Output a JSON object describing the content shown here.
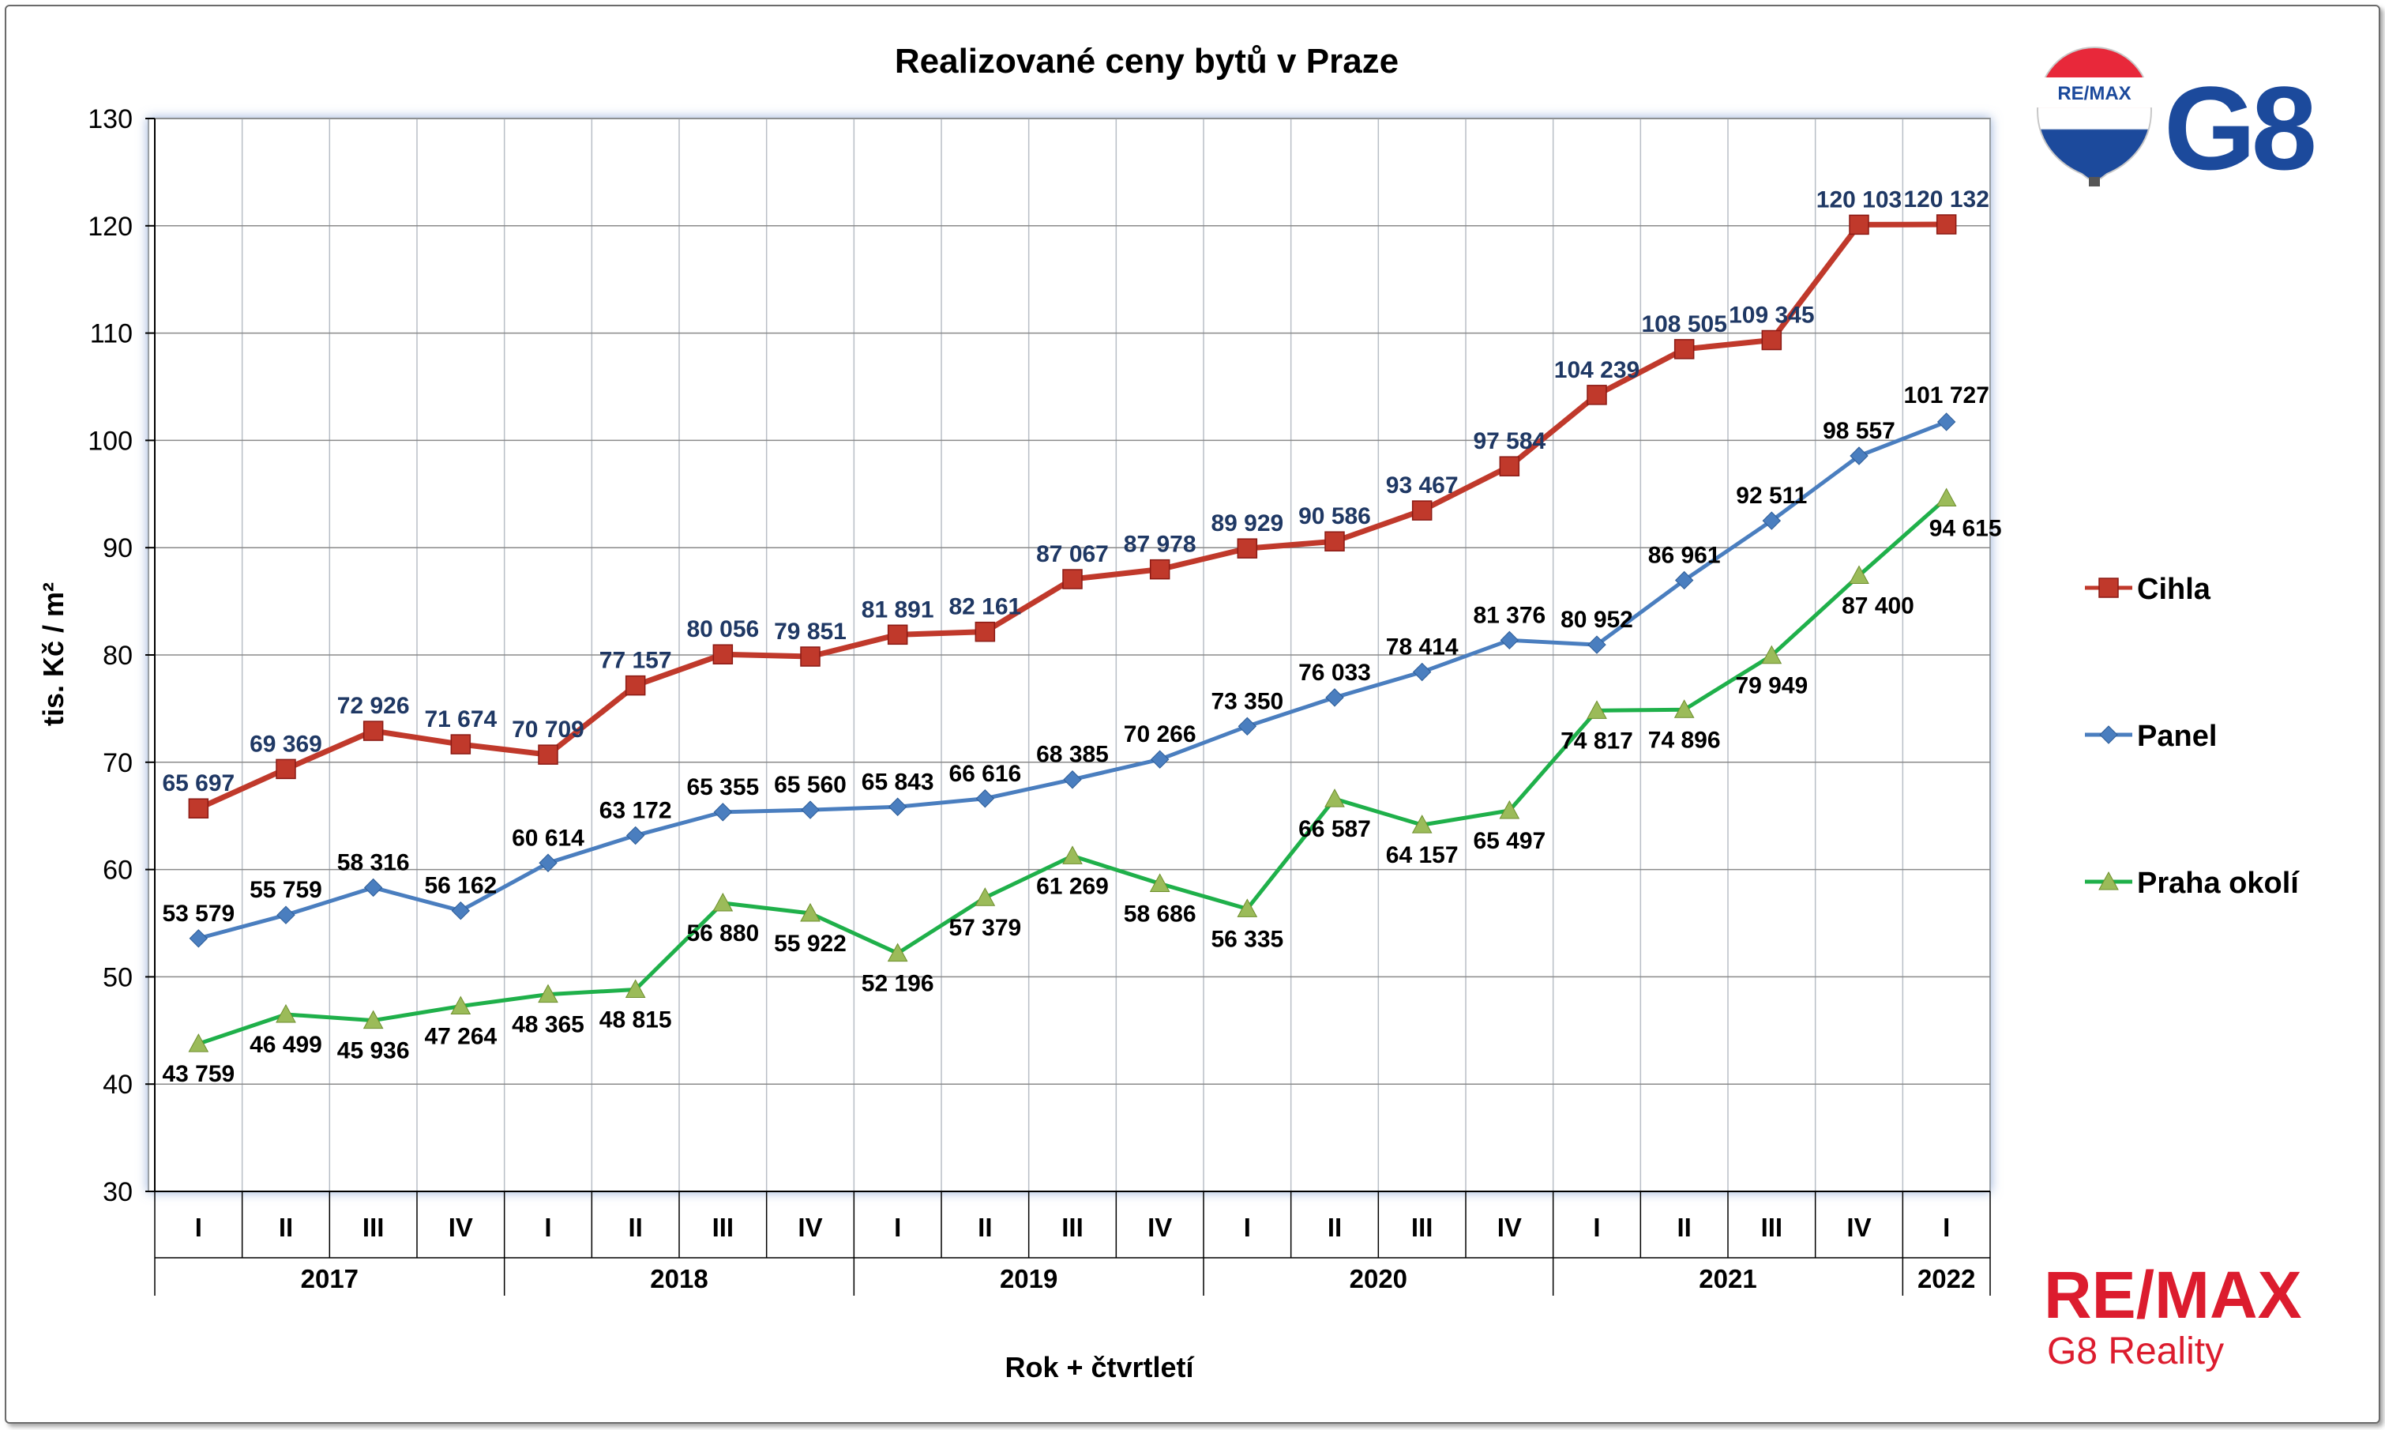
{
  "chart_data": {
    "type": "line",
    "title": "Realizované ceny bytů v Praze",
    "ylabel": "tis. Kč / m²",
    "xlabel": "Rok + čtvrtletí",
    "ylim": [
      30,
      130
    ],
    "yticks": [
      30,
      40,
      50,
      60,
      70,
      80,
      90,
      100,
      110,
      120,
      130
    ],
    "categories": [
      "I",
      "II",
      "III",
      "IV",
      "I",
      "II",
      "III",
      "IV",
      "I",
      "II",
      "III",
      "IV",
      "I",
      "II",
      "III",
      "IV",
      "I",
      "II",
      "III",
      "IV",
      "I"
    ],
    "years": [
      {
        "label": "2017",
        "quarters": 4
      },
      {
        "label": "2018",
        "quarters": 4
      },
      {
        "label": "2019",
        "quarters": 4
      },
      {
        "label": "2020",
        "quarters": 4
      },
      {
        "label": "2021",
        "quarters": 4
      },
      {
        "label": "2022",
        "quarters": 1
      }
    ],
    "grid": true,
    "legend_position": "right",
    "series": [
      {
        "name": "Cihla",
        "color": "#c0392b",
        "label_color": "#1f3864",
        "marker": "square",
        "values": [
          65.697,
          69.369,
          72.926,
          71.674,
          70.709,
          77.157,
          80.056,
          79.851,
          81.891,
          82.161,
          87.067,
          87.978,
          89.929,
          90.586,
          93.467,
          97.584,
          104.239,
          108.505,
          109.345,
          120.103,
          120.132
        ],
        "labels": [
          "65 697",
          "69 369",
          "72 926",
          "71 674",
          "70 709",
          "77 157",
          "80 056",
          "79 851",
          "81 891",
          "82 161",
          "87 067",
          "87 978",
          "89 929",
          "90 586",
          "93 467",
          "97 584",
          "104 239",
          "108 505",
          "109 345",
          "120 103",
          "120 132"
        ]
      },
      {
        "name": "Panel",
        "color": "#4a7ebf",
        "label_color": "#000000",
        "marker": "diamond",
        "values": [
          53.579,
          55.759,
          58.316,
          56.162,
          60.614,
          63.172,
          65.355,
          65.56,
          65.843,
          66.616,
          68.385,
          70.266,
          73.35,
          76.033,
          78.414,
          81.376,
          80.952,
          86.961,
          92.511,
          98.557,
          101.727
        ],
        "labels": [
          "53 579",
          "55 759",
          "58 316",
          "56 162",
          "60 614",
          "63 172",
          "65 355",
          "65 560",
          "65 843",
          "66 616",
          "68 385",
          "70 266",
          "73 350",
          "76 033",
          "78 414",
          "81 376",
          "80 952",
          "86 961",
          "92 511",
          "98 557",
          "101 727"
        ]
      },
      {
        "name": "Praha okolí",
        "color": "#1fb04a",
        "label_color": "#000000",
        "marker": "triangle",
        "values": [
          43.759,
          46.499,
          45.936,
          47.264,
          48.365,
          48.815,
          56.88,
          55.922,
          52.196,
          57.379,
          61.269,
          58.686,
          56.335,
          66.587,
          64.157,
          65.497,
          74.817,
          74.896,
          79.949,
          87.4,
          94.615
        ],
        "labels": [
          "43 759",
          "46 499",
          "45 936",
          "47 264",
          "48 365",
          "48 815",
          "56 880",
          "55 922",
          "52 196",
          "57 379",
          "61 269",
          "58 686",
          "56 335",
          "66 587",
          "64 157",
          "65 497",
          "74 817",
          "74 896",
          "79 949",
          "87 400",
          "94 615"
        ]
      }
    ]
  },
  "branding": {
    "balloon_text": "RE/MAX",
    "g8_logo": "G8",
    "remax_logo": "RE/MAX",
    "remax_sub": "G8 Reality",
    "brand_red": "#dc1c2e",
    "brand_blue": "#1c4a9c"
  }
}
